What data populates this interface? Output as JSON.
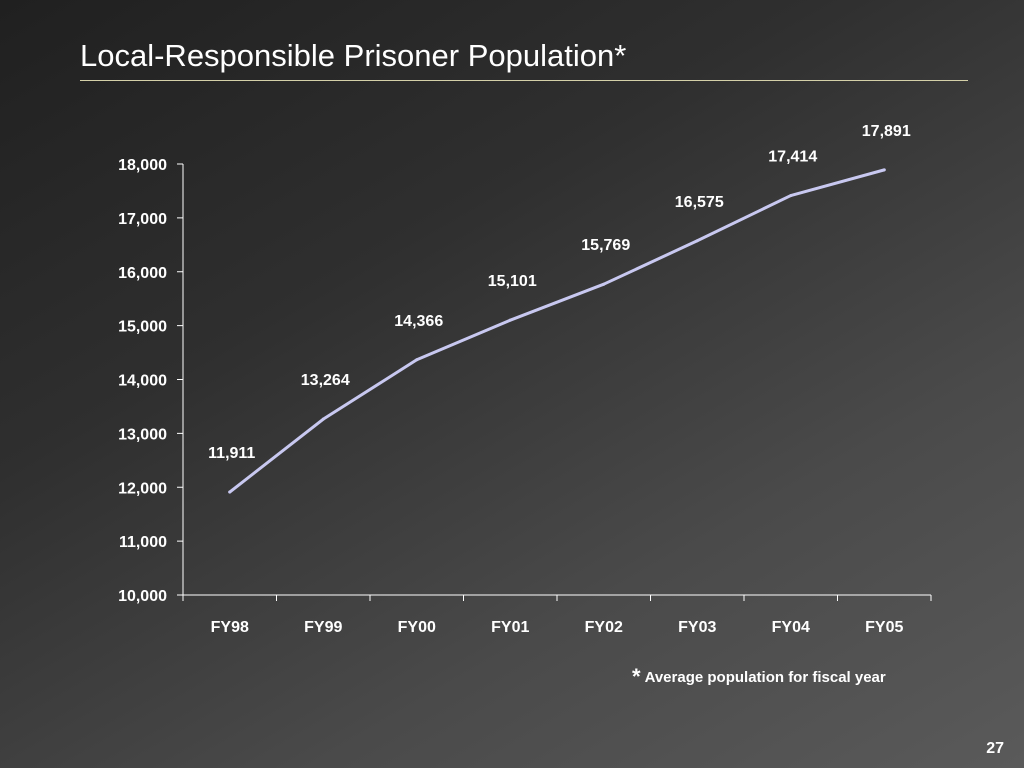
{
  "slide": {
    "title": "Local-Responsible Prisoner Population*",
    "footnote_symbol": "*",
    "footnote": "Average population for fiscal year",
    "page_number": "27"
  },
  "colors": {
    "line": "#c8c8f0",
    "axis": "#ffffff",
    "title_rule": "#d4d0a8"
  },
  "chart_data": {
    "type": "line",
    "title": "Local-Responsible Prisoner Population*",
    "categories": [
      "FY98",
      "FY99",
      "FY00",
      "FY01",
      "FY02",
      "FY03",
      "FY04",
      "FY05"
    ],
    "series": [
      {
        "values": [
          11911,
          13264,
          14366,
          15101,
          15769,
          16575,
          17414,
          17891
        ]
      }
    ],
    "data_labels": [
      "11,911",
      "13,264",
      "14,366",
      "15,101",
      "15,769",
      "16,575",
      "17,414",
      "17,891"
    ],
    "y_ticks": [
      "10,000",
      "11,000",
      "12,000",
      "13,000",
      "14,000",
      "15,000",
      "16,000",
      "17,000",
      "18,000"
    ],
    "ylim": [
      10000,
      18000
    ],
    "y_step": 1000,
    "grid": false,
    "legend": "none"
  }
}
